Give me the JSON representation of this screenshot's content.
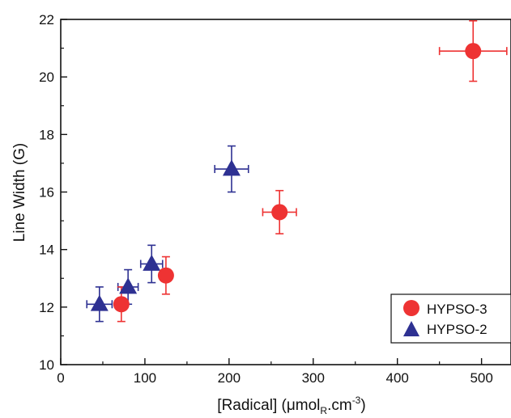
{
  "chart_data": {
    "type": "scatter",
    "xlabel": {
      "text": "[Radical] (",
      "mu": "μ",
      "unit": "mol",
      "sub": "R",
      "mid": ".cm",
      "sup": "-3",
      "close": ")"
    },
    "ylabel": "Line Width (G)",
    "xlim": [
      0,
      535
    ],
    "ylim": [
      10,
      22
    ],
    "x_ticks": [
      "0",
      "100",
      "200",
      "300",
      "400",
      "500"
    ],
    "y_ticks": [
      "10",
      "12",
      "14",
      "16",
      "18",
      "20",
      "22"
    ],
    "legend_position": "bottom-right",
    "series": [
      {
        "name": "HYPSO-3",
        "marker": "circle",
        "color": "#ee3333",
        "points": [
          {
            "x": 72,
            "y": 12.1,
            "xerr": 0,
            "yerr": 0.6
          },
          {
            "x": 125,
            "y": 13.1,
            "xerr": 0,
            "yerr": 0.65
          },
          {
            "x": 260,
            "y": 15.3,
            "xerr": 20,
            "yerr": 0.75
          },
          {
            "x": 490,
            "y": 20.9,
            "xerr": 40,
            "yerr": 1.05
          }
        ]
      },
      {
        "name": "HYPSO-2",
        "marker": "triangle",
        "color": "#2e3192",
        "points": [
          {
            "x": 46,
            "y": 12.1,
            "xerr": 15,
            "yerr": 0.6
          },
          {
            "x": 80,
            "y": 12.7,
            "xerr": 12,
            "yerr": 0.6
          },
          {
            "x": 108,
            "y": 13.5,
            "xerr": 13,
            "yerr": 0.65
          },
          {
            "x": 203,
            "y": 16.8,
            "xerr": 20,
            "yerr": 0.8
          }
        ]
      }
    ]
  }
}
